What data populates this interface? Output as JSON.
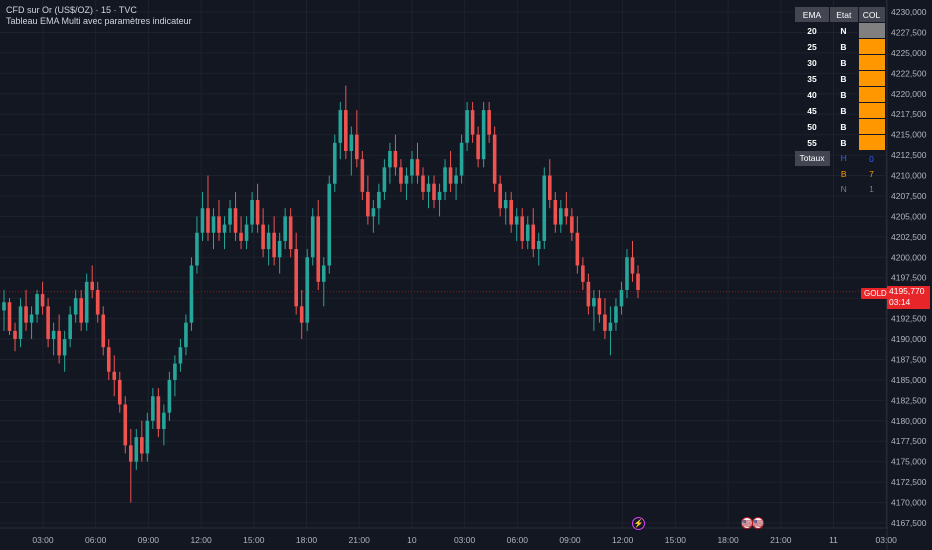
{
  "header": {
    "symbol_line": "CFD sur Or (US$/OZ) · 15 · TVC",
    "indicator_line": "Tableau EMA Multi avec paramètres indicateur"
  },
  "table": {
    "headers": [
      "EMA",
      "Etat",
      "COL"
    ],
    "rows": [
      {
        "ema": "20",
        "state": "N",
        "color": "#808080"
      },
      {
        "ema": "25",
        "state": "B",
        "color": "#ff9800"
      },
      {
        "ema": "30",
        "state": "B",
        "color": "#ff9800"
      },
      {
        "ema": "35",
        "state": "B",
        "color": "#ff9800"
      },
      {
        "ema": "40",
        "state": "B",
        "color": "#ff9800"
      },
      {
        "ema": "45",
        "state": "B",
        "color": "#ff9800"
      },
      {
        "ema": "50",
        "state": "B",
        "color": "#ff9800"
      },
      {
        "ema": "55",
        "state": "B",
        "color": "#ff9800"
      }
    ],
    "totals_label": "Totaux",
    "totals": [
      {
        "label": "H",
        "value": "0",
        "color": "#2962ff"
      },
      {
        "label": "B",
        "value": "7",
        "color": "#ff9800"
      },
      {
        "label": "N",
        "value": "1",
        "color": "#787b86"
      }
    ]
  },
  "price_tag": {
    "symbol": "GOLD",
    "price": "4195,770",
    "countdown": "03:14"
  },
  "events": {
    "lightning": "⚡",
    "flag": "🇺🇸"
  },
  "colors": {
    "up": "#26a69a",
    "down": "#ef5350",
    "background": "#131722",
    "grid": "#1e222d"
  },
  "chart_data": {
    "type": "candlestick",
    "y_axis_labels": [
      "4230,000",
      "4227,500",
      "4225,000",
      "4222,500",
      "4220,000",
      "4217,500",
      "4215,000",
      "4212,500",
      "4210,000",
      "4207,500",
      "4205,000",
      "4202,500",
      "4200,000",
      "4197,500",
      "4195,000",
      "4192,500",
      "4190,000",
      "4187,500",
      "4185,000",
      "4182,500",
      "4180,000",
      "4177,500",
      "4175,000",
      "4172,500",
      "4170,000",
      "4167,500"
    ],
    "x_axis_labels": [
      "03:00",
      "06:00",
      "09:00",
      "12:00",
      "15:00",
      "18:00",
      "21:00",
      "10",
      "03:00",
      "06:00",
      "09:00",
      "12:00",
      "15:00",
      "18:00",
      "21:00",
      "11",
      "03:00"
    ],
    "ylim": [
      4166.5,
      4231
    ],
    "current_price": 4195.77,
    "candles": [
      [
        4193.5,
        4196,
        4191,
        4194.5
      ],
      [
        4194.5,
        4195,
        4190.5,
        4191
      ],
      [
        4191,
        4192,
        4188.5,
        4190
      ],
      [
        4190,
        4195,
        4189,
        4194
      ],
      [
        4194,
        4196,
        4191,
        4192
      ],
      [
        4192,
        4194,
        4190,
        4193
      ],
      [
        4193,
        4196,
        4192,
        4195.5
      ],
      [
        4195.5,
        4197,
        4193,
        4194
      ],
      [
        4194,
        4195,
        4189,
        4190
      ],
      [
        4190,
        4192,
        4188,
        4191
      ],
      [
        4191,
        4193,
        4187,
        4188
      ],
      [
        4188,
        4191,
        4186,
        4190
      ],
      [
        4190,
        4194,
        4189,
        4193
      ],
      [
        4193,
        4196,
        4192,
        4195
      ],
      [
        4195,
        4196,
        4191,
        4192
      ],
      [
        4192,
        4198,
        4191,
        4197
      ],
      [
        4197,
        4199,
        4195,
        4196
      ],
      [
        4196,
        4197,
        4192,
        4193
      ],
      [
        4193,
        4194,
        4188,
        4189
      ],
      [
        4189,
        4190,
        4185,
        4186
      ],
      [
        4186,
        4188,
        4183,
        4185
      ],
      [
        4185,
        4186,
        4181,
        4182
      ],
      [
        4182,
        4183,
        4176,
        4177
      ],
      [
        4177,
        4179,
        4170,
        4175
      ],
      [
        4175,
        4179,
        4174,
        4178
      ],
      [
        4178,
        4180,
        4175,
        4176
      ],
      [
        4176,
        4181,
        4175,
        4180
      ],
      [
        4180,
        4184,
        4179,
        4183
      ],
      [
        4183,
        4184,
        4178,
        4179
      ],
      [
        4179,
        4182,
        4177,
        4181
      ],
      [
        4181,
        4186,
        4180,
        4185
      ],
      [
        4185,
        4188,
        4183,
        4187
      ],
      [
        4187,
        4190,
        4186,
        4189
      ],
      [
        4189,
        4193,
        4188,
        4192
      ],
      [
        4192,
        4200,
        4191,
        4199
      ],
      [
        4199,
        4205,
        4198,
        4203
      ],
      [
        4203,
        4208,
        4202,
        4206
      ],
      [
        4206,
        4210,
        4202,
        4203
      ],
      [
        4203,
        4206,
        4201,
        4205
      ],
      [
        4205,
        4207,
        4202,
        4203
      ],
      [
        4203,
        4205,
        4201,
        4204
      ],
      [
        4204,
        4207,
        4203,
        4206
      ],
      [
        4206,
        4208,
        4202,
        4203
      ],
      [
        4203,
        4205,
        4201,
        4202
      ],
      [
        4202,
        4205,
        4201,
        4204
      ],
      [
        4204,
        4208,
        4203,
        4207
      ],
      [
        4207,
        4209,
        4203,
        4204
      ],
      [
        4204,
        4206,
        4200,
        4201
      ],
      [
        4201,
        4204,
        4199,
        4203
      ],
      [
        4203,
        4205,
        4199,
        4200
      ],
      [
        4200,
        4203,
        4198,
        4202
      ],
      [
        4202,
        4206,
        4201,
        4205
      ],
      [
        4205,
        4206,
        4200,
        4201
      ],
      [
        4201,
        4203,
        4193,
        4194
      ],
      [
        4194,
        4196,
        4190,
        4192
      ],
      [
        4192,
        4201,
        4191,
        4200
      ],
      [
        4200,
        4206,
        4199,
        4205
      ],
      [
        4205,
        4207,
        4196,
        4197
      ],
      [
        4197,
        4200,
        4194,
        4199
      ],
      [
        4199,
        4210,
        4198,
        4209
      ],
      [
        4209,
        4215,
        4208,
        4214
      ],
      [
        4214,
        4219,
        4212,
        4218
      ],
      [
        4218,
        4221,
        4212,
        4213
      ],
      [
        4213,
        4216,
        4210,
        4215
      ],
      [
        4215,
        4218,
        4211,
        4212
      ],
      [
        4212,
        4213,
        4207,
        4208
      ],
      [
        4208,
        4210,
        4204,
        4205
      ],
      [
        4205,
        4207,
        4203,
        4206
      ],
      [
        4206,
        4209,
        4204,
        4208
      ],
      [
        4208,
        4212,
        4207,
        4211
      ],
      [
        4211,
        4214,
        4209,
        4213
      ],
      [
        4213,
        4215,
        4210,
        4211
      ],
      [
        4211,
        4212,
        4208,
        4209
      ],
      [
        4209,
        4211,
        4207,
        4210
      ],
      [
        4210,
        4213,
        4209,
        4212
      ],
      [
        4212,
        4214,
        4209,
        4210
      ],
      [
        4210,
        4211,
        4207,
        4208
      ],
      [
        4208,
        4210,
        4206,
        4209
      ],
      [
        4209,
        4210,
        4206,
        4207
      ],
      [
        4207,
        4209,
        4205,
        4208
      ],
      [
        4208,
        4212,
        4207,
        4211
      ],
      [
        4211,
        4213,
        4208,
        4209
      ],
      [
        4209,
        4211,
        4207,
        4210
      ],
      [
        4210,
        4215,
        4209,
        4214
      ],
      [
        4214,
        4219,
        4213,
        4218
      ],
      [
        4218,
        4219,
        4214,
        4215
      ],
      [
        4215,
        4216,
        4211,
        4212
      ],
      [
        4212,
        4219,
        4211,
        4218
      ],
      [
        4218,
        4219,
        4214,
        4215
      ],
      [
        4215,
        4216,
        4208,
        4209
      ],
      [
        4209,
        4210,
        4205,
        4206
      ],
      [
        4206,
        4208,
        4204,
        4207
      ],
      [
        4207,
        4208,
        4203,
        4204
      ],
      [
        4204,
        4206,
        4202,
        4205
      ],
      [
        4205,
        4206,
        4201,
        4202
      ],
      [
        4202,
        4205,
        4201,
        4204
      ],
      [
        4204,
        4206,
        4200,
        4201
      ],
      [
        4201,
        4203,
        4199,
        4202
      ],
      [
        4202,
        4211,
        4201,
        4210
      ],
      [
        4210,
        4212,
        4206,
        4207
      ],
      [
        4207,
        4208,
        4203,
        4204
      ],
      [
        4204,
        4207,
        4203,
        4206
      ],
      [
        4206,
        4208,
        4204,
        4205
      ],
      [
        4205,
        4206,
        4202,
        4203
      ],
      [
        4203,
        4205,
        4198,
        4199
      ],
      [
        4199,
        4200,
        4196,
        4197
      ],
      [
        4197,
        4198,
        4193,
        4194
      ],
      [
        4194,
        4196,
        4191,
        4195
      ],
      [
        4195,
        4196,
        4192,
        4193
      ],
      [
        4193,
        4195,
        4190,
        4191
      ],
      [
        4191,
        4194,
        4188,
        4192
      ],
      [
        4192,
        4195,
        4191,
        4194
      ],
      [
        4194,
        4197,
        4193,
        4196
      ],
      [
        4196,
        4201,
        4195,
        4200
      ],
      [
        4200,
        4202,
        4197,
        4198
      ],
      [
        4198,
        4199,
        4195,
        4196
      ]
    ]
  }
}
